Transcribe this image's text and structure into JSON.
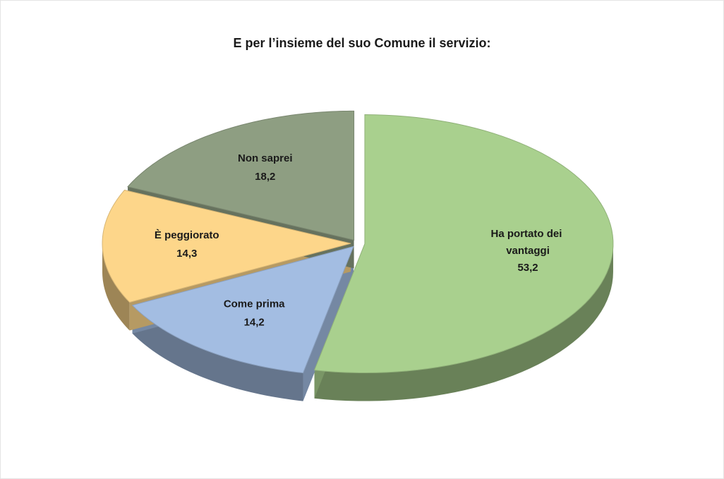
{
  "chart_data": {
    "type": "pie",
    "title": "E per l’insieme del suo Comune il servizio:",
    "categories": [
      "Ha portato dei vantaggi",
      "Come prima",
      "È peggiorato",
      "Non saprei"
    ],
    "values": [
      53.2,
      14.2,
      14.3,
      18.2
    ],
    "value_labels": [
      "53,2",
      "14,2",
      "14,3",
      "18,2"
    ],
    "colors": [
      "#a9d08e",
      "#a3bde2",
      "#fdd68a",
      "#8e9e82"
    ]
  }
}
